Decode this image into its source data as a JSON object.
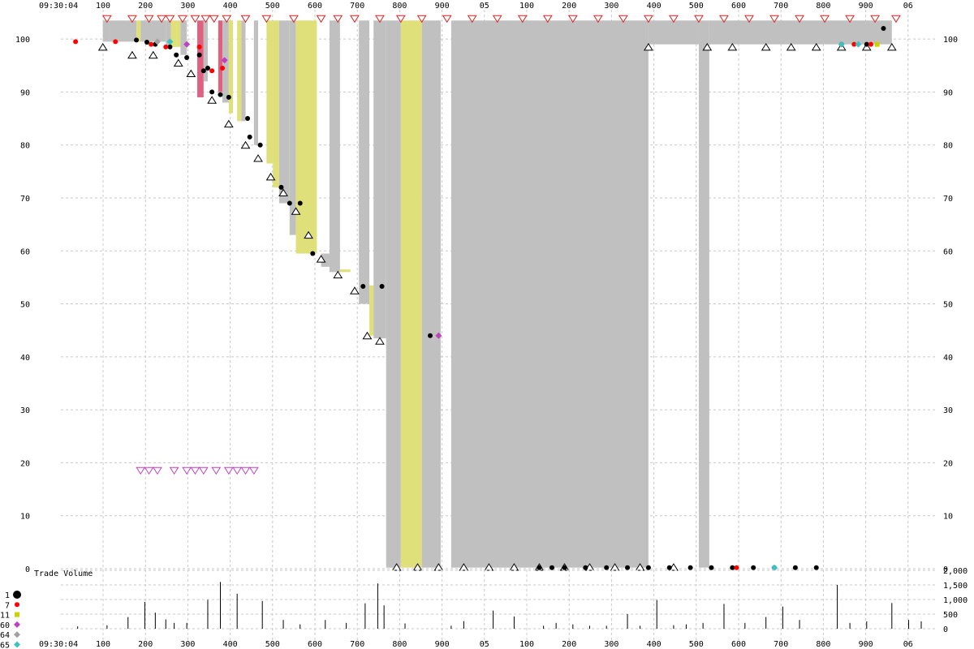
{
  "chart_data": [
    {
      "type": "scatter",
      "title": "",
      "start_time_label": "09:30:04",
      "x_tick_labels": [
        "100",
        "200",
        "300",
        "400",
        "500",
        "600",
        "700",
        "800",
        "900",
        "05",
        "100",
        "200",
        "300",
        "400",
        "500",
        "600",
        "700",
        "800",
        "900",
        "06"
      ],
      "y_ticks": [
        0,
        10,
        20,
        30,
        40,
        50,
        60,
        70,
        80,
        90,
        100
      ],
      "ylim": [
        0,
        104
      ],
      "grid": true,
      "bands_note": "shaded bid/ask spread bands in gray, yellow and red",
      "bands": [
        {
          "x0": 100,
          "x1": 115,
          "y0": 99.5,
          "y1": 103.5,
          "color": "gray"
        },
        {
          "x0": 115,
          "x1": 180,
          "y0": 99.5,
          "y1": 103.5,
          "color": "gray"
        },
        {
          "x0": 180,
          "x1": 190,
          "y0": 99.5,
          "y1": 103.5,
          "color": "yellow"
        },
        {
          "x0": 190,
          "x1": 250,
          "y0": 99.5,
          "y1": 103.5,
          "color": "gray"
        },
        {
          "x0": 250,
          "x1": 262,
          "y0": 98.5,
          "y1": 103.5,
          "color": "gray"
        },
        {
          "x0": 262,
          "x1": 285,
          "y0": 98.5,
          "y1": 103.5,
          "color": "yellow"
        },
        {
          "x0": 285,
          "x1": 300,
          "y0": 97,
          "y1": 103.5,
          "color": "gray"
        },
        {
          "x0": 325,
          "x1": 340,
          "y0": 89,
          "y1": 103.5,
          "color": "red"
        },
        {
          "x0": 340,
          "x1": 350,
          "y0": 92,
          "y1": 103.5,
          "color": "gray"
        },
        {
          "x0": 375,
          "x1": 385,
          "y0": 90,
          "y1": 103.5,
          "color": "red"
        },
        {
          "x0": 385,
          "x1": 400,
          "y0": 88,
          "y1": 103.5,
          "color": "gray"
        },
        {
          "x0": 400,
          "x1": 410,
          "y0": 86,
          "y1": 103.5,
          "color": "yellow"
        },
        {
          "x0": 420,
          "x1": 430,
          "y0": 84.5,
          "y1": 103.5,
          "color": "yellow"
        },
        {
          "x0": 430,
          "x1": 440,
          "y0": 84.5,
          "y1": 103.5,
          "color": "gray"
        },
        {
          "x0": 460,
          "x1": 470,
          "y0": 80,
          "y1": 103.5,
          "color": "gray"
        },
        {
          "x0": 490,
          "x1": 505,
          "y0": 76.5,
          "y1": 103.5,
          "color": "yellow"
        },
        {
          "x0": 505,
          "x1": 520,
          "y0": 72,
          "y1": 103.5,
          "color": "yellow"
        },
        {
          "x0": 520,
          "x1": 545,
          "y0": 69,
          "y1": 103.5,
          "color": "gray"
        },
        {
          "x0": 545,
          "x1": 560,
          "y0": 63,
          "y1": 103.5,
          "color": "gray"
        },
        {
          "x0": 560,
          "x1": 610,
          "y0": 59.5,
          "y1": 103.5,
          "color": "yellow"
        },
        {
          "x0": 620,
          "x1": 640,
          "y0": 57,
          "y1": 59.5,
          "color": "gray"
        },
        {
          "x0": 640,
          "x1": 665,
          "y0": 56,
          "y1": 103.5,
          "color": "gray"
        },
        {
          "x0": 665,
          "x1": 690,
          "y0": 56,
          "y1": 56.5,
          "color": "yellow"
        },
        {
          "x0": 710,
          "x1": 735,
          "y0": 50,
          "y1": 103.5,
          "color": "gray"
        },
        {
          "x0": 735,
          "x1": 745,
          "y0": 44,
          "y1": 53.5,
          "color": "yellow"
        },
        {
          "x0": 745,
          "x1": 775,
          "y0": 43.5,
          "y1": 103.5,
          "color": "gray"
        },
        {
          "x0": 775,
          "x1": 810,
          "y0": 0.2,
          "y1": 103.5,
          "color": "gray"
        },
        {
          "x0": 810,
          "x1": 860,
          "y0": 0.2,
          "y1": 103.5,
          "color": "yellow"
        },
        {
          "x0": 860,
          "x1": 905,
          "y0": 0.2,
          "y1": 103.5,
          "color": "gray"
        },
        {
          "x0": 930,
          "x1": 1400,
          "y0": 0.2,
          "y1": 103.5,
          "color": "gray"
        },
        {
          "x0": 1400,
          "x1": 1520,
          "y0": 99,
          "y1": 103.5,
          "color": "gray"
        },
        {
          "x0": 1520,
          "x1": 1545,
          "y0": 0.2,
          "y1": 103.5,
          "color": "gray"
        },
        {
          "x0": 1545,
          "x1": 1980,
          "y0": 99,
          "y1": 103.5,
          "color": "gray"
        }
      ],
      "series": [
        {
          "code": "1",
          "color": "#000000",
          "marker": "circle",
          "points": [
            [
              180,
              99.8
            ],
            [
              205,
              99.4
            ],
            [
              225,
              99
            ],
            [
              260,
              98.5
            ],
            [
              275,
              97
            ],
            [
              300,
              96.5
            ],
            [
              330,
              97
            ],
            [
              340,
              94
            ],
            [
              350,
              94.5
            ],
            [
              360,
              90
            ],
            [
              380,
              89.5
            ],
            [
              400,
              89
            ],
            [
              445,
              85
            ],
            [
              450,
              81.5
            ],
            [
              475,
              80
            ],
            [
              525,
              72
            ],
            [
              545,
              69
            ],
            [
              570,
              69
            ],
            [
              600,
              59.5
            ],
            [
              720,
              53.3
            ],
            [
              765,
              53.3
            ],
            [
              880,
              44
            ],
            [
              1140,
              0.2
            ],
            [
              1170,
              0.2
            ],
            [
              1200,
              0.2
            ],
            [
              1250,
              0.2
            ],
            [
              1300,
              0.2
            ],
            [
              1350,
              0.2
            ],
            [
              1400,
              0.2
            ],
            [
              1450,
              0.2
            ],
            [
              1500,
              0.2
            ],
            [
              1550,
              0.2
            ],
            [
              1600,
              0.2
            ],
            [
              1650,
              0.2
            ],
            [
              1700,
              0.2
            ],
            [
              1750,
              0.2
            ],
            [
              1800,
              0.2
            ],
            [
              1860,
              99
            ],
            [
              1920,
              99
            ],
            [
              1960,
              102
            ]
          ]
        },
        {
          "code": "7",
          "color": "#ff0000",
          "marker": "circle",
          "points": [
            [
              35,
              99.5
            ],
            [
              130,
              99.5
            ],
            [
              215,
              99
            ],
            [
              250,
              98.5
            ],
            [
              330,
              98.5
            ],
            [
              360,
              94
            ],
            [
              385,
              94.5
            ],
            [
              1610,
              0.2
            ],
            [
              1890,
              99
            ],
            [
              1930,
              99
            ]
          ]
        },
        {
          "code": "11",
          "color": "#c8d200",
          "marker": "square",
          "points": [
            [
              1945,
              99
            ]
          ]
        },
        {
          "code": "60",
          "color": "#c040c0",
          "marker": "diamond",
          "points": [
            [
              300,
              99
            ],
            [
              390,
              96
            ],
            [
              900,
              44
            ]
          ]
        },
        {
          "code": "64",
          "color": "#a0a0a0",
          "marker": "diamond",
          "points": [
            [
              230,
              99.5
            ]
          ]
        },
        {
          "code": "65",
          "color": "#40c0c0",
          "marker": "diamond",
          "points": [
            [
              260,
              99.5
            ],
            [
              1700,
              0.2
            ],
            [
              1860,
              99
            ],
            [
              1900,
              99
            ]
          ]
        }
      ],
      "trade_volume": {
        "label": "Trade Volume",
        "y_ticks": [
          0,
          500,
          1000,
          1500,
          2000
        ],
        "y_tick_labels": [
          "0",
          "500",
          "1,000",
          "1,500",
          "2,000"
        ],
        "bars": [
          [
            40,
            80
          ],
          [
            110,
            120
          ],
          [
            160,
            400
          ],
          [
            200,
            920
          ],
          [
            225,
            550
          ],
          [
            250,
            320
          ],
          [
            270,
            200
          ],
          [
            300,
            200
          ],
          [
            350,
            990
          ],
          [
            380,
            1600
          ],
          [
            420,
            1200
          ],
          [
            480,
            950
          ],
          [
            530,
            300
          ],
          [
            570,
            150
          ],
          [
            630,
            300
          ],
          [
            680,
            200
          ],
          [
            725,
            870
          ],
          [
            755,
            1550
          ],
          [
            770,
            800
          ],
          [
            820,
            180
          ],
          [
            930,
            100
          ],
          [
            960,
            260
          ],
          [
            1030,
            620
          ],
          [
            1080,
            420
          ],
          [
            1150,
            100
          ],
          [
            1180,
            200
          ],
          [
            1220,
            150
          ],
          [
            1260,
            100
          ],
          [
            1300,
            100
          ],
          [
            1350,
            500
          ],
          [
            1380,
            100
          ],
          [
            1420,
            980
          ],
          [
            1460,
            120
          ],
          [
            1490,
            150
          ],
          [
            1530,
            200
          ],
          [
            1580,
            850
          ],
          [
            1630,
            200
          ],
          [
            1680,
            400
          ],
          [
            1720,
            760
          ],
          [
            1760,
            300
          ],
          [
            1850,
            1500
          ],
          [
            1880,
            200
          ],
          [
            1920,
            250
          ],
          [
            1980,
            880
          ],
          [
            2020,
            300
          ],
          [
            2050,
            250
          ]
        ]
      },
      "legend_title": "",
      "legend": [
        {
          "code": "1",
          "color": "#000000",
          "marker": "circle"
        },
        {
          "code": "7",
          "color": "#ff0000",
          "marker": "circle"
        },
        {
          "code": "11",
          "color": "#c8d200",
          "marker": "square"
        },
        {
          "code": "60",
          "color": "#c040c0",
          "marker": "diamond"
        },
        {
          "code": "64",
          "color": "#a0a0a0",
          "marker": "diamond"
        },
        {
          "code": "65",
          "color": "#40c0c0",
          "marker": "diamond"
        }
      ],
      "colors": {
        "gray_band": "#c0c0c0",
        "yellow_band": "#e0e07a",
        "red_band": "#e06080",
        "grid": "#c8c8c8",
        "bid_marker": "#ffffff",
        "ask_marker": "#ffffff",
        "magenta_marker": "#c040c0"
      },
      "quote_markers": {
        "ask_down": [
          [
            110,
            103.8
          ],
          [
            170,
            103.8
          ],
          [
            210,
            103.8
          ],
          [
            240,
            103.8
          ],
          [
            260,
            103.8
          ],
          [
            290,
            103.8
          ],
          [
            320,
            103.8
          ],
          [
            345,
            103.8
          ],
          [
            365,
            103.8
          ],
          [
            395,
            103.8
          ],
          [
            440,
            103.8
          ],
          [
            490,
            103.8
          ],
          [
            555,
            103.8
          ],
          [
            620,
            103.8
          ],
          [
            660,
            103.8
          ],
          [
            700,
            103.8
          ],
          [
            760,
            103.8
          ],
          [
            810,
            103.8
          ],
          [
            860,
            103.8
          ],
          [
            920,
            103.8
          ],
          [
            980,
            103.8
          ],
          [
            1040,
            103.8
          ],
          [
            1100,
            103.8
          ],
          [
            1160,
            103.8
          ],
          [
            1220,
            103.8
          ],
          [
            1280,
            103.8
          ],
          [
            1340,
            103.8
          ],
          [
            1400,
            103.8
          ],
          [
            1460,
            103.8
          ],
          [
            1520,
            103.8
          ],
          [
            1580,
            103.8
          ],
          [
            1640,
            103.8
          ],
          [
            1700,
            103.8
          ],
          [
            1760,
            103.8
          ],
          [
            1820,
            103.8
          ],
          [
            1880,
            103.8
          ],
          [
            1940,
            103.8
          ],
          [
            1990,
            103.8
          ]
        ],
        "bid_up": [
          [
            100,
            98.5
          ],
          [
            170,
            97
          ],
          [
            220,
            97
          ],
          [
            280,
            95.5
          ],
          [
            310,
            93.5
          ],
          [
            360,
            88.5
          ],
          [
            400,
            84
          ],
          [
            440,
            80
          ],
          [
            470,
            77.5
          ],
          [
            500,
            74
          ],
          [
            530,
            71
          ],
          [
            560,
            67.5
          ],
          [
            590,
            63
          ],
          [
            620,
            58.5
          ],
          [
            660,
            55.5
          ],
          [
            700,
            52.5
          ],
          [
            730,
            44
          ],
          [
            760,
            43
          ],
          [
            800,
            0.3
          ],
          [
            850,
            0.3
          ],
          [
            900,
            0.3
          ],
          [
            960,
            0.3
          ],
          [
            1020,
            0.3
          ],
          [
            1080,
            0.3
          ],
          [
            1140,
            0.3
          ],
          [
            1200,
            0.3
          ],
          [
            1260,
            0.3
          ],
          [
            1320,
            0.3
          ],
          [
            1380,
            0.3
          ],
          [
            1400,
            98.5
          ],
          [
            1460,
            0.3
          ],
          [
            1540,
            98.5
          ],
          [
            1600,
            98.5
          ],
          [
            1680,
            98.5
          ],
          [
            1740,
            98.5
          ],
          [
            1800,
            98.5
          ],
          [
            1860,
            98.5
          ],
          [
            1920,
            98.5
          ],
          [
            1980,
            98.5
          ]
        ],
        "magenta_row": [
          [
            190,
            18.5
          ],
          [
            210,
            18.5
          ],
          [
            230,
            18.5
          ],
          [
            270,
            18.5
          ],
          [
            300,
            18.5
          ],
          [
            320,
            18.5
          ],
          [
            340,
            18.5
          ],
          [
            370,
            18.5
          ],
          [
            400,
            18.5
          ],
          [
            420,
            18.5
          ],
          [
            440,
            18.5
          ],
          [
            460,
            18.5
          ]
        ]
      }
    }
  ]
}
